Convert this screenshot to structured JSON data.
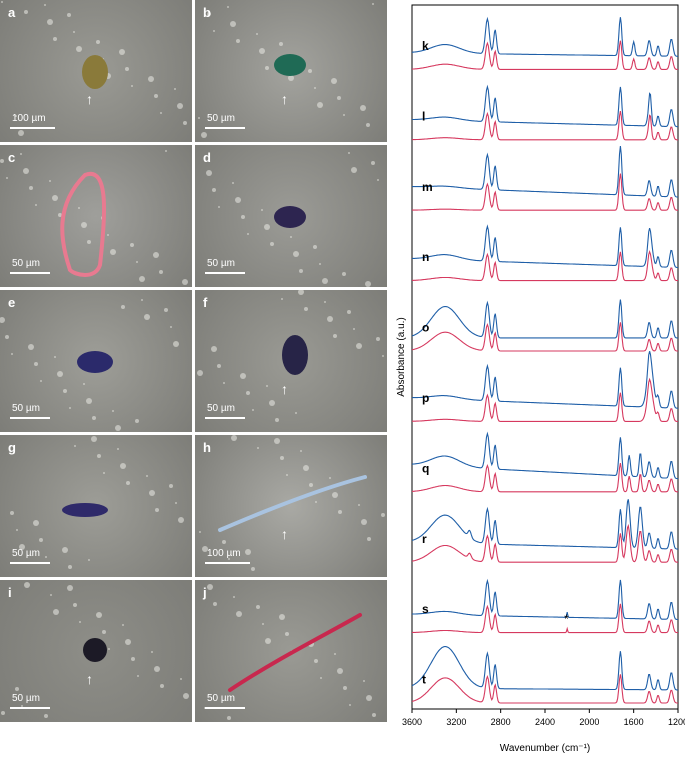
{
  "panels": [
    {
      "id": "a",
      "scale": "100 µm",
      "particle": "yellow-brown fragment",
      "arrow": true
    },
    {
      "id": "b",
      "scale": "50 µm",
      "particle": "green fragment",
      "arrow": true
    },
    {
      "id": "c",
      "scale": "50 µm",
      "particle": "pink fiber",
      "arrow": false
    },
    {
      "id": "d",
      "scale": "50 µm",
      "particle": "dark purple fragment",
      "arrow": false
    },
    {
      "id": "e",
      "scale": "50 µm",
      "particle": "dark blue fragment",
      "arrow": false
    },
    {
      "id": "f",
      "scale": "50 µm",
      "particle": "dark fragment",
      "arrow": true
    },
    {
      "id": "g",
      "scale": "50 µm",
      "particle": "dark blue fragment",
      "arrow": false
    },
    {
      "id": "h",
      "scale": "100 µm",
      "particle": "light blue fiber",
      "arrow": true
    },
    {
      "id": "i",
      "scale": "50 µm",
      "particle": "black fragment",
      "arrow": true
    },
    {
      "id": "j",
      "scale": "50 µm",
      "particle": "red fiber",
      "arrow": false
    }
  ],
  "chart_data": {
    "type": "line",
    "xlabel": "Wavenumber (cm⁻¹)",
    "ylabel": "Absorbance (a.u.)",
    "xlim": [
      3600,
      1200
    ],
    "xticks": [
      3600,
      3200,
      2800,
      2400,
      2000,
      1600,
      1200
    ],
    "colors": {
      "sample": "#1f5fa8",
      "reference": "#d6395f"
    },
    "annotation": "*",
    "spectra": [
      {
        "id": "k"
      },
      {
        "id": "l"
      },
      {
        "id": "m"
      },
      {
        "id": "n"
      },
      {
        "id": "o"
      },
      {
        "id": "p"
      },
      {
        "id": "q"
      },
      {
        "id": "r"
      },
      {
        "id": "s"
      },
      {
        "id": "t"
      }
    ]
  }
}
